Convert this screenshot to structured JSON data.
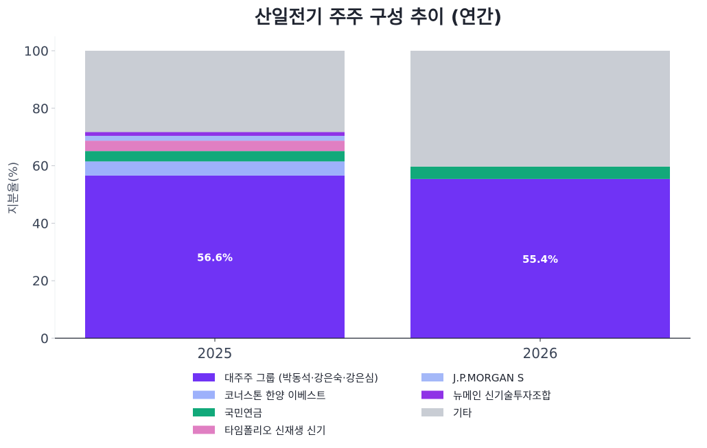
{
  "chart_data": {
    "type": "bar",
    "stacked": true,
    "title": "산일전기 주주 구성 추이 (연간)",
    "xlabel": "",
    "ylabel": "지분율(%)",
    "ylim": [
      0,
      105
    ],
    "yticks": [
      0,
      20,
      40,
      60,
      80,
      100
    ],
    "categories": [
      "2025",
      "2026"
    ],
    "grid": false,
    "legend_position": "bottom",
    "series": [
      {
        "name": "대주주 그룹 (박동석·강은숙·강은심)",
        "color": "#7033f5",
        "values": [
          56.6,
          55.4
        ],
        "labels": [
          "56.6%",
          "55.4%"
        ]
      },
      {
        "name": "코너스톤 한양 이베스트",
        "color": "#9db1fb",
        "values": [
          4.9,
          0
        ]
      },
      {
        "name": "국민연금",
        "color": "#12a97a",
        "values": [
          3.6,
          4.3
        ]
      },
      {
        "name": "타임폴리오 신재생 신기",
        "color": "#e07fc2",
        "values": [
          3.6,
          0
        ]
      },
      {
        "name": "J.P.MORGAN S",
        "color": "#a4b8f8",
        "values": [
          1.7,
          0
        ]
      },
      {
        "name": "뉴메인 신기술투자조합",
        "color": "#8f32e6",
        "values": [
          1.3,
          0
        ]
      },
      {
        "name": "기타",
        "color": "#c9cdd4",
        "values": [
          28.3,
          40.3
        ]
      }
    ]
  }
}
